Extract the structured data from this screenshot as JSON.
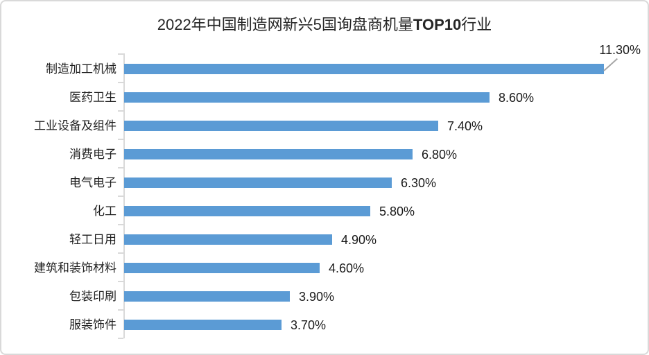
{
  "title": {
    "full": "2022年中国制造网新兴5国询盘商机量TOP10行业",
    "prefix": "2022年中国制造网新兴5国询盘商机量",
    "bold": "TOP10",
    "suffix": "行业"
  },
  "chart_data": {
    "type": "bar",
    "orientation": "horizontal",
    "title": "2022年中国制造网新兴5国询盘商机量TOP10行业",
    "categories": [
      "制造加工机械",
      "医药卫生",
      "工业设备及组件",
      "消费电子",
      "电气电子",
      "化工",
      "轻工日用",
      "建筑和装饰材料",
      "包装印刷",
      "服装饰件"
    ],
    "values": [
      11.3,
      8.6,
      7.4,
      6.8,
      6.3,
      5.8,
      4.9,
      4.6,
      3.9,
      3.7
    ],
    "value_labels": [
      "11.30%",
      "8.60%",
      "7.40%",
      "6.80%",
      "6.30%",
      "5.80%",
      "4.90%",
      "4.60%",
      "3.90%",
      "3.70%"
    ],
    "unit": "%",
    "xlim": [
      0,
      12
    ],
    "grid": false,
    "legend": false,
    "data_labels": "outside-end",
    "first_label_callout": true,
    "bar_color": "#5b9bd5",
    "axis_color": "#d9d9d9",
    "leader_line_color": "#a6a6a6",
    "label_color": "#1f1f1f",
    "title_color": "#262626",
    "background_color": "#ffffff",
    "border_color": "#d9d9d9"
  }
}
